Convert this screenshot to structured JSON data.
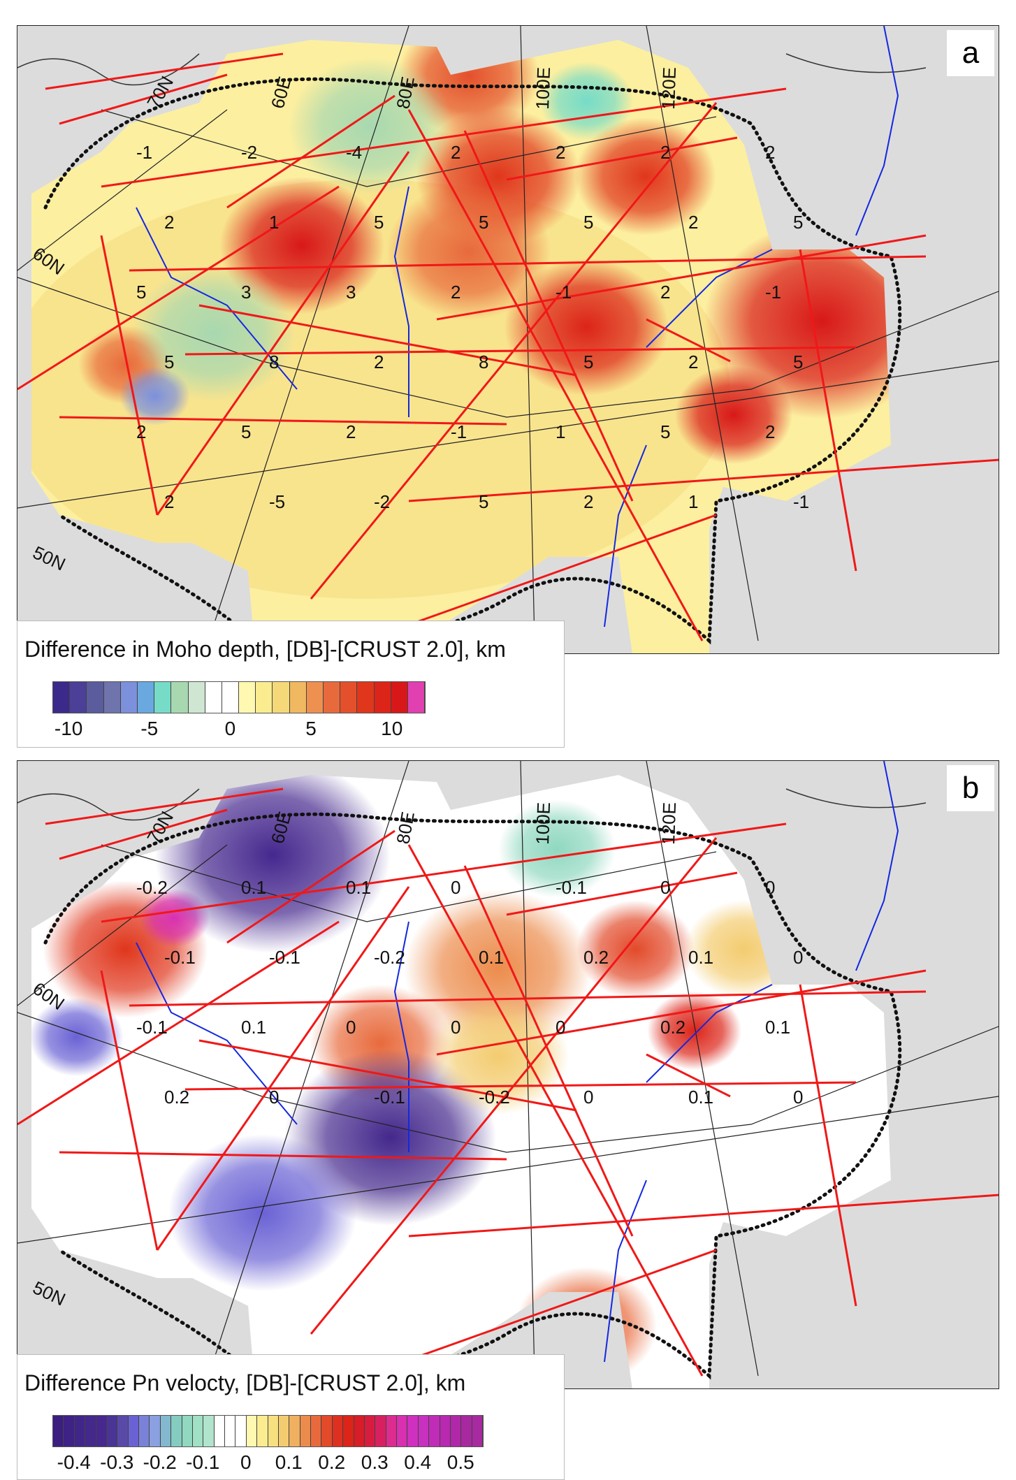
{
  "panels": [
    {
      "id": "a",
      "tag": "a",
      "legend_title": "Difference in Moho depth, [DB]-[CRUST 2.0], km",
      "colorbar": {
        "ticks": [
          "-10",
          "-5",
          "0",
          "5",
          "10"
        ],
        "range": [
          -11,
          12
        ],
        "colors": [
          "#3b2a8a",
          "#4b3f98",
          "#5a5c9e",
          "#6f74ad",
          "#7c90dc",
          "#6aa8e0",
          "#76dcc8",
          "#a8d8b0",
          "#cfe6d2",
          "#ffffff",
          "#ffffff",
          "#fff8b0",
          "#fbec90",
          "#f5d878",
          "#f0b860",
          "#ee9050",
          "#e86a3c",
          "#e4502c",
          "#e0361c",
          "#dc2418",
          "#d81818",
          "#e040b0"
        ]
      },
      "graticule_labels": [
        "70N",
        "60E",
        "80E",
        "100E",
        "120E",
        "60N",
        "50N"
      ],
      "contour_labels": [
        "-1",
        "-2",
        "-4",
        "2",
        "2",
        "2",
        "2",
        "2",
        "1",
        "5",
        "5",
        "5",
        "2",
        "5",
        "5",
        "3",
        "3",
        "2",
        "-1",
        "2",
        "-1",
        "5",
        "8",
        "2",
        "8",
        "5",
        "2",
        "5",
        "2",
        "5",
        "2",
        "-1",
        "1",
        "5",
        "2",
        "2",
        "-5",
        "-2",
        "5",
        "2",
        "1",
        "-1"
      ],
      "blobs": [
        [
          0.46,
          0.08,
          0.06,
          "#e4502c"
        ],
        [
          0.49,
          0.24,
          0.07,
          "#e0361c"
        ],
        [
          0.64,
          0.24,
          0.06,
          "#e0361c"
        ],
        [
          0.29,
          0.35,
          0.07,
          "#d81818"
        ],
        [
          0.46,
          0.36,
          0.07,
          "#e86a3c"
        ],
        [
          0.58,
          0.48,
          0.07,
          "#dc2418"
        ],
        [
          0.82,
          0.47,
          0.1,
          "#d81818"
        ],
        [
          0.73,
          0.62,
          0.05,
          "#d81818"
        ],
        [
          0.11,
          0.54,
          0.04,
          "#e86a3c"
        ],
        [
          0.36,
          0.16,
          0.07,
          "#a8d8b0"
        ],
        [
          0.2,
          0.49,
          0.07,
          "#a8d8b0"
        ],
        [
          0.58,
          0.12,
          0.04,
          "#76dcc8"
        ],
        [
          0.14,
          0.59,
          0.03,
          "#7c90dc"
        ]
      ]
    },
    {
      "id": "b",
      "tag": "b",
      "legend_title": "Difference Pn velocty, [DB]-[CRUST 2.0], km",
      "colorbar": {
        "ticks": [
          "-0.4",
          "-0.3",
          "-0.2",
          "-0.1",
          "0",
          "0.1",
          "0.2",
          "0.3",
          "0.4",
          "0.5"
        ],
        "range": [
          -0.45,
          0.55
        ],
        "colors": [
          "#3b1e80",
          "#3e2285",
          "#41268a",
          "#44288c",
          "#46288e",
          "#4a3496",
          "#5a4aa8",
          "#6a62d4",
          "#7a82d8",
          "#8aa0e0",
          "#84b8d0",
          "#84ccc0",
          "#90d8c0",
          "#a0e0c4",
          "#b0e4cc",
          "#ffffff",
          "#ffffff",
          "#ffffff",
          "#fff8b0",
          "#fbec90",
          "#f7e080",
          "#f3cc70",
          "#efb060",
          "#ec8c4c",
          "#e86a3c",
          "#e24a2a",
          "#de3020",
          "#dc2418",
          "#d81c28",
          "#d81c40",
          "#d82060",
          "#dc2c90",
          "#d830b0",
          "#d030c0",
          "#c830c0",
          "#c02cb8",
          "#b828b0",
          "#b028a8",
          "#a828a0",
          "#a82aa0"
        ]
      },
      "graticule_labels": [
        "70N",
        "60E",
        "80E",
        "100E",
        "120E",
        "60N",
        "50N"
      ],
      "contour_labels": [
        "-0.2",
        "0.1",
        "0.1",
        "0",
        "-0.1",
        "0",
        "0",
        "-0.1",
        "-0.1",
        "-0.2",
        "0.1",
        "0.2",
        "0.1",
        "0",
        "-0.1",
        "0.1",
        "0",
        "0",
        "0",
        "0.2",
        "0.1",
        "0.2",
        "0",
        "-0.1",
        "-0.2",
        "0",
        "0.1",
        "0"
      ],
      "blobs": [
        [
          0.11,
          0.3,
          0.07,
          "#e0361c"
        ],
        [
          0.16,
          0.25,
          0.03,
          "#d830b0"
        ],
        [
          0.26,
          0.15,
          0.1,
          "#46288e"
        ],
        [
          0.37,
          0.45,
          0.06,
          "#e86a3c"
        ],
        [
          0.38,
          0.6,
          0.09,
          "#44288c"
        ],
        [
          0.25,
          0.72,
          0.08,
          "#6a62d4"
        ],
        [
          0.49,
          0.33,
          0.08,
          "#ec8c4c"
        ],
        [
          0.49,
          0.47,
          0.06,
          "#f3cc70"
        ],
        [
          0.63,
          0.3,
          0.05,
          "#e24a2a"
        ],
        [
          0.69,
          0.43,
          0.04,
          "#dc2418"
        ],
        [
          0.58,
          0.9,
          0.06,
          "#e86a3c"
        ],
        [
          0.06,
          0.44,
          0.04,
          "#6a62d4"
        ],
        [
          0.74,
          0.3,
          0.05,
          "#f3cc70"
        ],
        [
          0.55,
          0.14,
          0.05,
          "#90d8c0"
        ]
      ]
    }
  ]
}
